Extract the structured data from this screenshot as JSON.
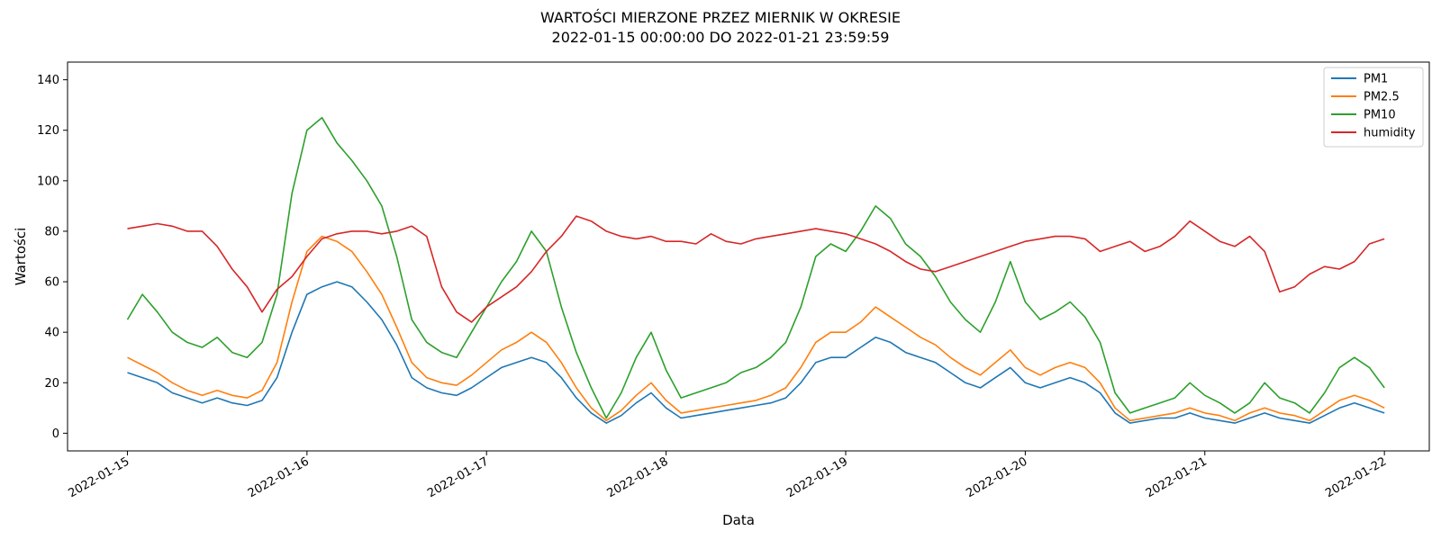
{
  "chart_data": {
    "type": "line",
    "title": "WARTOŚCI MIERZONE PRZEZ MIERNIK W OKRESIE",
    "subtitle": "2022-01-15 00:00:00 DO 2022-01-21 23:59:59",
    "xlabel": "Data",
    "ylabel": "Wartości",
    "xlim": [
      "2022-01-14 16:00",
      "2022-01-22 06:00"
    ],
    "ylim": [
      -7,
      147
    ],
    "x_ticks": [
      "2022-01-15",
      "2022-01-16",
      "2022-01-17",
      "2022-01-18",
      "2022-01-19",
      "2022-01-20",
      "2022-01-21",
      "2022-01-22"
    ],
    "y_ticks": [
      0,
      20,
      40,
      60,
      80,
      100,
      120,
      140
    ],
    "grid": false,
    "legend_position": "top-right",
    "x": [
      "2022-01-15 00:00",
      "2022-01-15 02:00",
      "2022-01-15 04:00",
      "2022-01-15 06:00",
      "2022-01-15 08:00",
      "2022-01-15 10:00",
      "2022-01-15 12:00",
      "2022-01-15 14:00",
      "2022-01-15 16:00",
      "2022-01-15 18:00",
      "2022-01-15 20:00",
      "2022-01-15 22:00",
      "2022-01-16 00:00",
      "2022-01-16 02:00",
      "2022-01-16 04:00",
      "2022-01-16 06:00",
      "2022-01-16 08:00",
      "2022-01-16 10:00",
      "2022-01-16 12:00",
      "2022-01-16 14:00",
      "2022-01-16 16:00",
      "2022-01-16 18:00",
      "2022-01-16 20:00",
      "2022-01-16 22:00",
      "2022-01-17 00:00",
      "2022-01-17 02:00",
      "2022-01-17 04:00",
      "2022-01-17 06:00",
      "2022-01-17 08:00",
      "2022-01-17 10:00",
      "2022-01-17 12:00",
      "2022-01-17 14:00",
      "2022-01-17 16:00",
      "2022-01-17 18:00",
      "2022-01-17 20:00",
      "2022-01-17 22:00",
      "2022-01-18 00:00",
      "2022-01-18 02:00",
      "2022-01-18 04:00",
      "2022-01-18 06:00",
      "2022-01-18 08:00",
      "2022-01-18 10:00",
      "2022-01-18 12:00",
      "2022-01-18 14:00",
      "2022-01-18 16:00",
      "2022-01-18 18:00",
      "2022-01-18 20:00",
      "2022-01-18 22:00",
      "2022-01-19 00:00",
      "2022-01-19 02:00",
      "2022-01-19 04:00",
      "2022-01-19 06:00",
      "2022-01-19 08:00",
      "2022-01-19 10:00",
      "2022-01-19 12:00",
      "2022-01-19 14:00",
      "2022-01-19 16:00",
      "2022-01-19 18:00",
      "2022-01-19 20:00",
      "2022-01-19 22:00",
      "2022-01-20 00:00",
      "2022-01-20 02:00",
      "2022-01-20 04:00",
      "2022-01-20 06:00",
      "2022-01-20 08:00",
      "2022-01-20 10:00",
      "2022-01-20 12:00",
      "2022-01-20 14:00",
      "2022-01-20 16:00",
      "2022-01-20 18:00",
      "2022-01-20 20:00",
      "2022-01-20 22:00",
      "2022-01-21 00:00",
      "2022-01-21 02:00",
      "2022-01-21 04:00",
      "2022-01-21 06:00",
      "2022-01-21 08:00",
      "2022-01-21 10:00",
      "2022-01-21 12:00",
      "2022-01-21 14:00",
      "2022-01-21 16:00",
      "2022-01-21 18:00",
      "2022-01-21 20:00",
      "2022-01-21 22:00",
      "2022-01-22 00:00"
    ],
    "series": [
      {
        "name": "PM1",
        "color": "#1f77b4",
        "values": [
          24,
          22,
          20,
          16,
          14,
          12,
          14,
          12,
          11,
          13,
          22,
          40,
          55,
          58,
          60,
          58,
          52,
          45,
          35,
          22,
          18,
          16,
          15,
          18,
          22,
          26,
          28,
          30,
          28,
          22,
          14,
          8,
          4,
          7,
          12,
          16,
          10,
          6,
          7,
          8,
          9,
          10,
          11,
          12,
          14,
          20,
          28,
          30,
          30,
          34,
          38,
          36,
          32,
          30,
          28,
          24,
          20,
          18,
          22,
          26,
          20,
          18,
          20,
          22,
          20,
          16,
          8,
          4,
          5,
          6,
          6,
          8,
          6,
          5,
          4,
          6,
          8,
          6,
          5,
          4,
          7,
          10,
          12,
          10,
          8
        ]
      },
      {
        "name": "PM2.5",
        "color": "#ff7f0e",
        "values": [
          30,
          27,
          24,
          20,
          17,
          15,
          17,
          15,
          14,
          17,
          28,
          52,
          72,
          78,
          76,
          72,
          64,
          55,
          42,
          28,
          22,
          20,
          19,
          23,
          28,
          33,
          36,
          40,
          36,
          28,
          18,
          10,
          5,
          9,
          15,
          20,
          13,
          8,
          9,
          10,
          11,
          12,
          13,
          15,
          18,
          26,
          36,
          40,
          40,
          44,
          50,
          46,
          42,
          38,
          35,
          30,
          26,
          23,
          28,
          33,
          26,
          23,
          26,
          28,
          26,
          20,
          10,
          5,
          6,
          7,
          8,
          10,
          8,
          7,
          5,
          8,
          10,
          8,
          7,
          5,
          9,
          13,
          15,
          13,
          10
        ]
      },
      {
        "name": "PM10",
        "color": "#2ca02c",
        "values": [
          45,
          55,
          48,
          40,
          36,
          34,
          38,
          32,
          30,
          36,
          55,
          95,
          120,
          125,
          115,
          108,
          100,
          90,
          70,
          45,
          36,
          32,
          30,
          40,
          50,
          60,
          68,
          80,
          72,
          50,
          32,
          18,
          6,
          16,
          30,
          40,
          25,
          14,
          16,
          18,
          20,
          24,
          26,
          30,
          36,
          50,
          70,
          75,
          72,
          80,
          90,
          85,
          75,
          70,
          62,
          52,
          45,
          40,
          52,
          68,
          52,
          45,
          48,
          52,
          46,
          36,
          16,
          8,
          10,
          12,
          14,
          20,
          15,
          12,
          8,
          12,
          20,
          14,
          12,
          8,
          16,
          26,
          30,
          26,
          18
        ]
      },
      {
        "name": "humidity",
        "color": "#d62728",
        "values": [
          81,
          82,
          83,
          82,
          80,
          80,
          74,
          65,
          58,
          48,
          57,
          62,
          70,
          77,
          79,
          80,
          80,
          79,
          80,
          82,
          78,
          58,
          48,
          44,
          50,
          54,
          58,
          64,
          72,
          78,
          86,
          84,
          80,
          78,
          77,
          78,
          76,
          76,
          75,
          79,
          76,
          75,
          77,
          78,
          79,
          80,
          81,
          80,
          79,
          77,
          75,
          72,
          68,
          65,
          64,
          66,
          68,
          70,
          72,
          74,
          76,
          77,
          78,
          78,
          77,
          72,
          74,
          76,
          72,
          74,
          78,
          84,
          80,
          76,
          74,
          78,
          72,
          56,
          58,
          63,
          66,
          65,
          68,
          75,
          77
        ]
      }
    ]
  }
}
